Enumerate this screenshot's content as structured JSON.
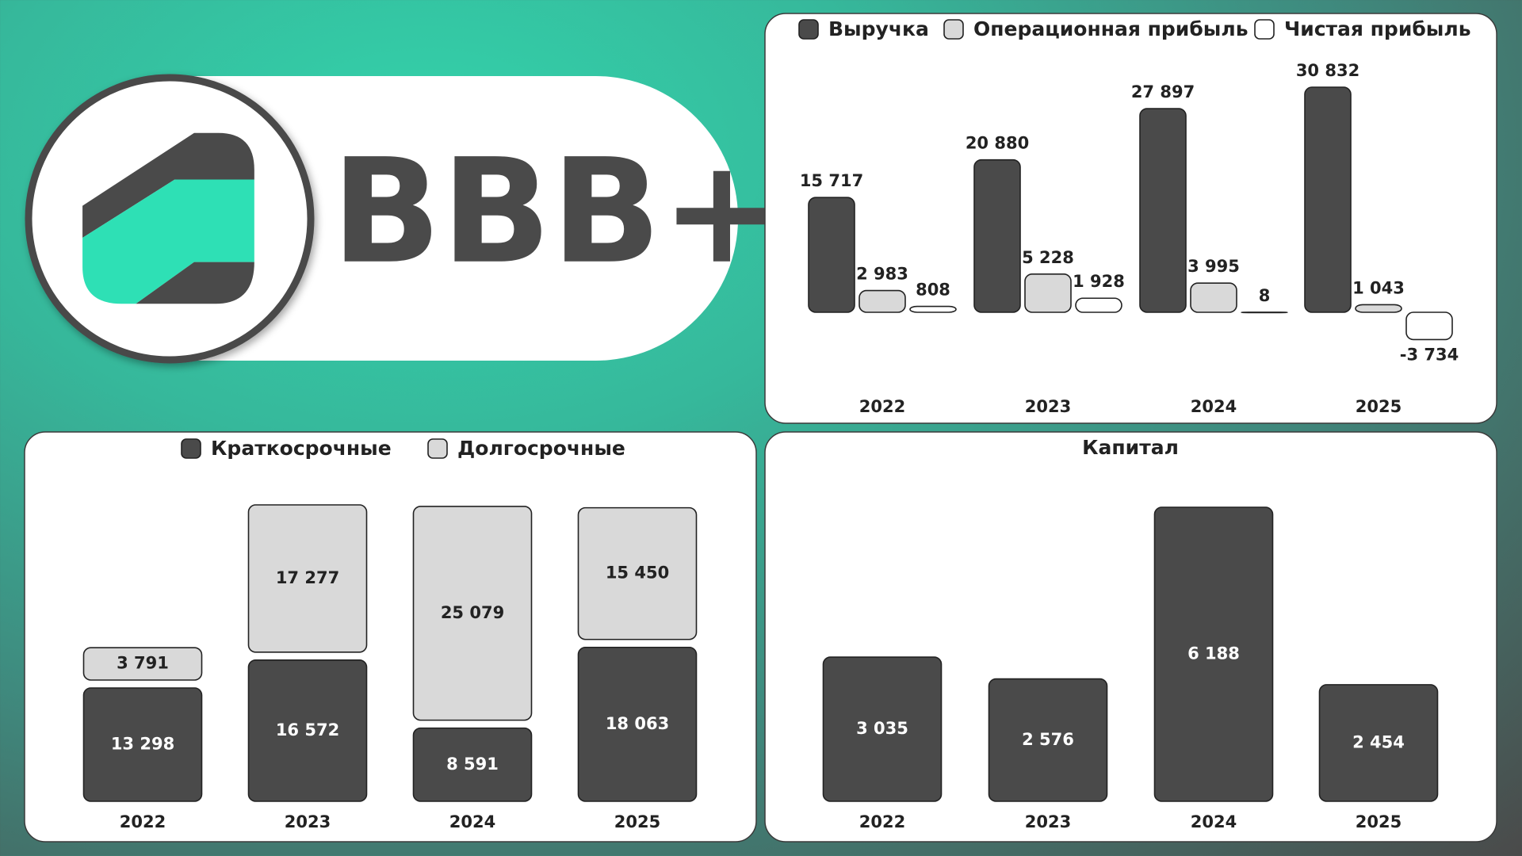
{
  "rating": "BBB+",
  "chart_data": [
    {
      "type": "grouped-bar",
      "categories": [
        "2022",
        "2023",
        "2024",
        "2025"
      ],
      "series": [
        {
          "name": "Выручка",
          "color": "#4a4a4a",
          "values": [
            15717,
            20880,
            27897,
            30832
          ],
          "value_labels": [
            "15 717",
            "20 880",
            "27 897",
            "30 832"
          ]
        },
        {
          "name": "Операционная прибыль",
          "color": "#d9d9d9",
          "values": [
            2983,
            5228,
            3995,
            1043
          ],
          "value_labels": [
            "2 983",
            "5 228",
            "3 995",
            "1 043"
          ]
        },
        {
          "name": "Чистая прибыль",
          "color": "#ffffff",
          "values": [
            808,
            1928,
            8,
            -3734
          ],
          "value_labels": [
            "808",
            "1 928",
            "8",
            "-3 734"
          ]
        }
      ]
    },
    {
      "type": "stacked-bar",
      "categories": [
        "2022",
        "2023",
        "2024",
        "2025"
      ],
      "series": [
        {
          "name": "Краткосрочные",
          "color": "#4a4a4a",
          "values": [
            13298,
            16572,
            8591,
            18063
          ],
          "value_labels": [
            "13 298",
            "16 572",
            "8 591",
            "18 063"
          ]
        },
        {
          "name": "Долгосрочные",
          "color": "#d9d9d9",
          "values": [
            3791,
            17277,
            25079,
            15450
          ],
          "value_labels": [
            "3 791",
            "17 277",
            "25 079",
            "15 450"
          ]
        }
      ]
    },
    {
      "type": "bar",
      "title": "Капитал",
      "categories": [
        "2022",
        "2023",
        "2024",
        "2025"
      ],
      "color": "#4a4a4a",
      "values": [
        3035,
        2576,
        6188,
        2454
      ],
      "value_labels": [
        "3 035",
        "2 576",
        "6 188",
        "2 454"
      ]
    }
  ]
}
